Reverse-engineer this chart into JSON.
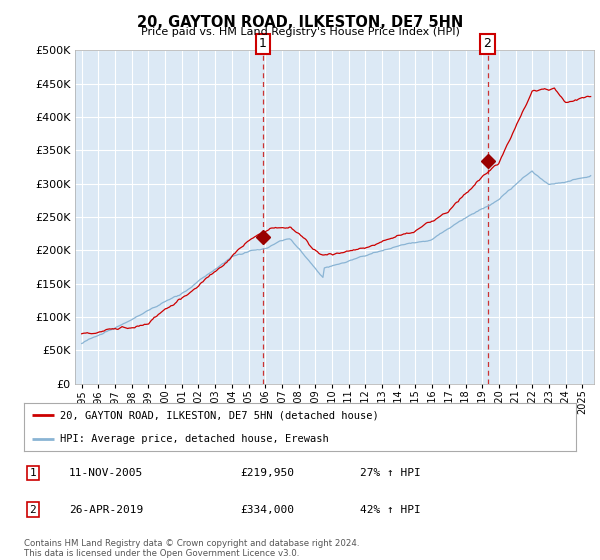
{
  "title": "20, GAYTON ROAD, ILKESTON, DE7 5HN",
  "subtitle": "Price paid vs. HM Land Registry's House Price Index (HPI)",
  "outer_bg_color": "#ffffff",
  "plot_bg_color": "#dce9f5",
  "red_line_color": "#cc0000",
  "blue_line_color": "#8ab4d4",
  "grid_color": "#ffffff",
  "marker_color": "#990000",
  "marker1_date_x": 2005.87,
  "marker1_y": 219950,
  "marker2_date_x": 2019.32,
  "marker2_y": 334000,
  "legend_entries": [
    "20, GAYTON ROAD, ILKESTON, DE7 5HN (detached house)",
    "HPI: Average price, detached house, Erewash"
  ],
  "table_rows": [
    [
      "1",
      "11-NOV-2005",
      "£219,950",
      "27% ↑ HPI"
    ],
    [
      "2",
      "26-APR-2019",
      "£334,000",
      "42% ↑ HPI"
    ]
  ],
  "footnote": "Contains HM Land Registry data © Crown copyright and database right 2024.\nThis data is licensed under the Open Government Licence v3.0.",
  "ylim": [
    0,
    500000
  ],
  "yticks": [
    0,
    50000,
    100000,
    150000,
    200000,
    250000,
    300000,
    350000,
    400000,
    450000,
    500000
  ],
  "xlim_start": 1994.6,
  "xlim_end": 2025.7
}
